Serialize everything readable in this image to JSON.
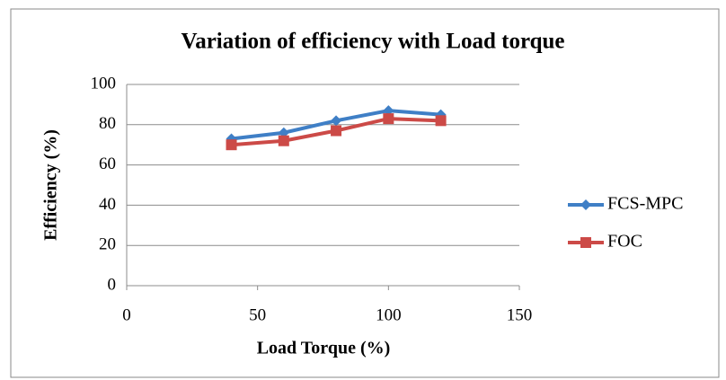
{
  "chart_data": {
    "type": "line",
    "title": "Variation of efficiency with Load torque",
    "xlabel": "Load Torque (%)",
    "ylabel": "Efficiency (%)",
    "x": [
      40,
      60,
      80,
      100,
      120
    ],
    "series": [
      {
        "name": "FCS-MPC",
        "color": "#3f7fc6",
        "marker": "diamond",
        "values": [
          73,
          76,
          82,
          87,
          85
        ]
      },
      {
        "name": "FOC",
        "color": "#cc4a47",
        "marker": "square",
        "values": [
          70,
          72,
          77,
          83,
          82
        ]
      }
    ],
    "xlim": [
      0,
      150
    ],
    "xticks": [
      0,
      50,
      100,
      150
    ],
    "ylim": [
      0,
      100
    ],
    "yticks": [
      0,
      20,
      40,
      60,
      80,
      100
    ],
    "grid": true,
    "legend": "right"
  }
}
